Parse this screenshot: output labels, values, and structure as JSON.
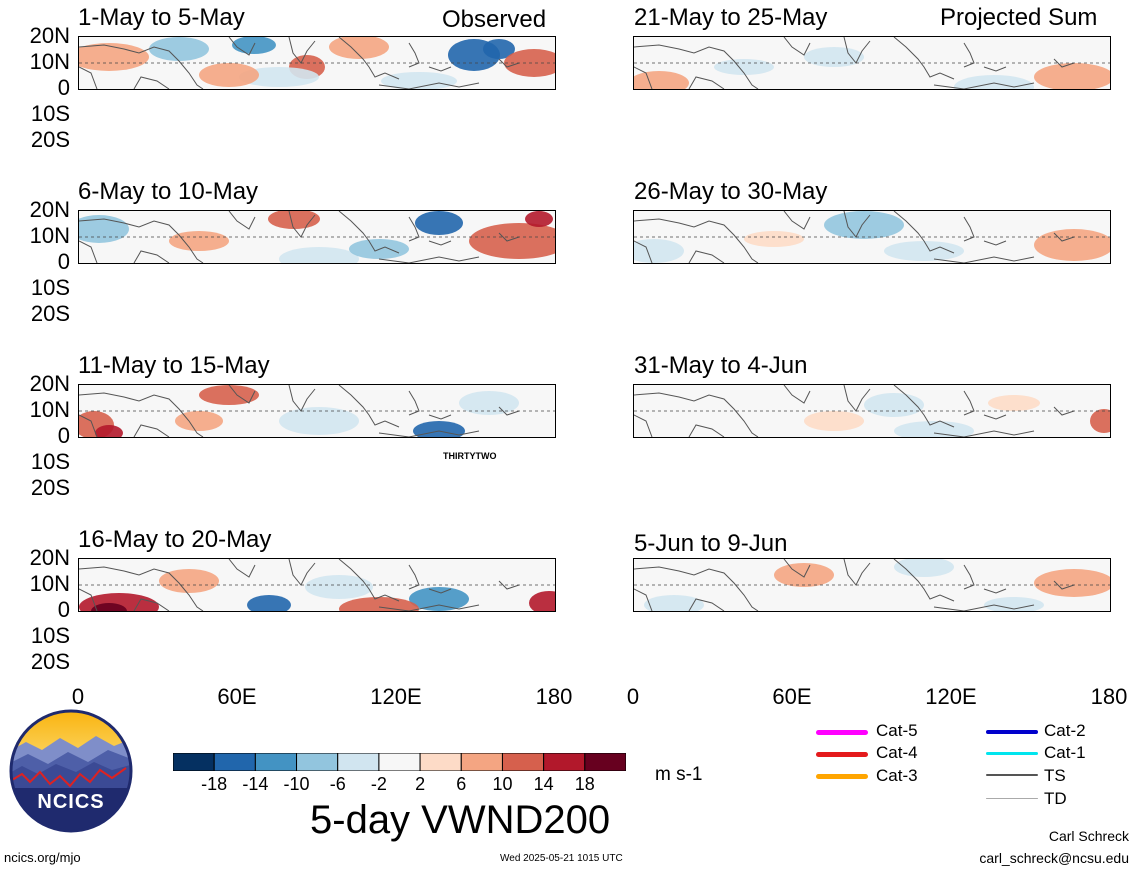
{
  "header": {
    "left_tag": "Observed",
    "right_tag": "Projected Sum"
  },
  "panels_left": [
    {
      "title": "1-May to 5-May"
    },
    {
      "title": "6-May to 10-May"
    },
    {
      "title": "11-May to 15-May",
      "storm_label": "THIRTYTWO"
    },
    {
      "title": "16-May to 20-May"
    }
  ],
  "panels_right": [
    {
      "title": "21-May to 25-May"
    },
    {
      "title": "26-May to 30-May"
    },
    {
      "title": "31-May to 4-Jun"
    },
    {
      "title": "5-Jun to 9-Jun"
    }
  ],
  "y_axis": [
    "20N",
    "10N",
    "0",
    "10S",
    "20S"
  ],
  "x_axis": [
    "0",
    "60E",
    "120E",
    "180"
  ],
  "colorbar": {
    "colors": [
      "#053061",
      "#2166ac",
      "#4393c3",
      "#92c5de",
      "#d1e5f0",
      "#f7f7f7",
      "#fddbc7",
      "#f4a582",
      "#d6604d",
      "#b2182b",
      "#67001f"
    ],
    "labels": [
      "-18",
      "-14",
      "-10",
      "-6",
      "-2",
      "2",
      "6",
      "10",
      "14",
      "18"
    ],
    "units": "m s-1"
  },
  "main_title": "5-day VWND200",
  "legend": [
    {
      "label": "Cat-5",
      "color": "#ff00ff"
    },
    {
      "label": "Cat-4",
      "color": "#e41a1c"
    },
    {
      "label": "Cat-3",
      "color": "#ffa500"
    },
    {
      "label": "Cat-2",
      "color": "#0000cc"
    },
    {
      "label": "Cat-1",
      "color": "#00e5ee"
    },
    {
      "label": "TS",
      "color": "#555555"
    },
    {
      "label": "TD",
      "color": "#aaaaaa"
    }
  ],
  "logo_text": "NCICS",
  "footer": {
    "site": "ncics.org/mjo",
    "timestamp": "Wed 2025-05-21 1015 UTC",
    "author": "Carl Schreck",
    "email": "carl_schreck@ncsu.edu"
  }
}
